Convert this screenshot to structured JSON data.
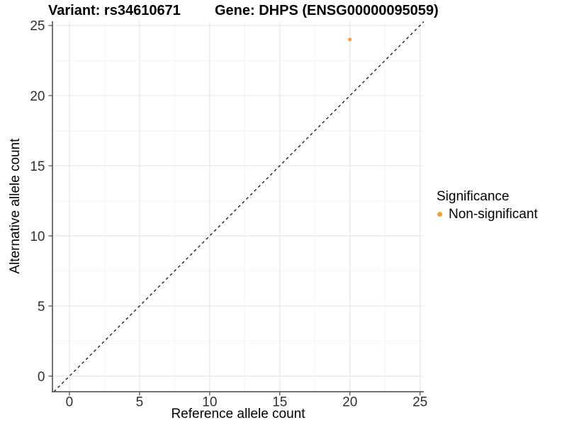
{
  "chart_data": {
    "type": "scatter",
    "title_left": "Variant: rs34610671",
    "title_right": "Gene: DHPS (ENSG00000095059)",
    "xlabel": "Reference allele count",
    "ylabel": "Alternative allele count",
    "xlim": [
      -1.21,
      25.27
    ],
    "ylim": [
      -1.11,
      25.3
    ],
    "x_ticks": [
      0,
      5,
      10,
      15,
      20,
      25
    ],
    "y_ticks": [
      0,
      5,
      10,
      15,
      20,
      25
    ],
    "x_minor_ticks": [
      2.5,
      7.5,
      12.5,
      17.5,
      22.5
    ],
    "y_minor_ticks": [
      2.5,
      7.5,
      12.5,
      17.5,
      22.5
    ],
    "grid": "major+minor",
    "reference_line": {
      "type": "identity",
      "slope": 1,
      "intercept": 0,
      "style": "dashed",
      "color": "#000000"
    },
    "series": [
      {
        "name": "Non-significant",
        "marker": "circle",
        "color": "#F9A12E",
        "points": [
          [
            20,
            24
          ]
        ]
      }
    ],
    "legend": {
      "title": "Significance",
      "position": "right",
      "items": [
        {
          "label": "Non-significant",
          "color": "#F9A12E",
          "marker": "circle"
        }
      ]
    }
  },
  "colors": {
    "background": "#ffffff",
    "axis_line": "#464646",
    "grid_major": "#e8e8e8",
    "grid_minor": "#f4f4f4",
    "tick_text": "#303030",
    "point": "#F9A12E"
  }
}
